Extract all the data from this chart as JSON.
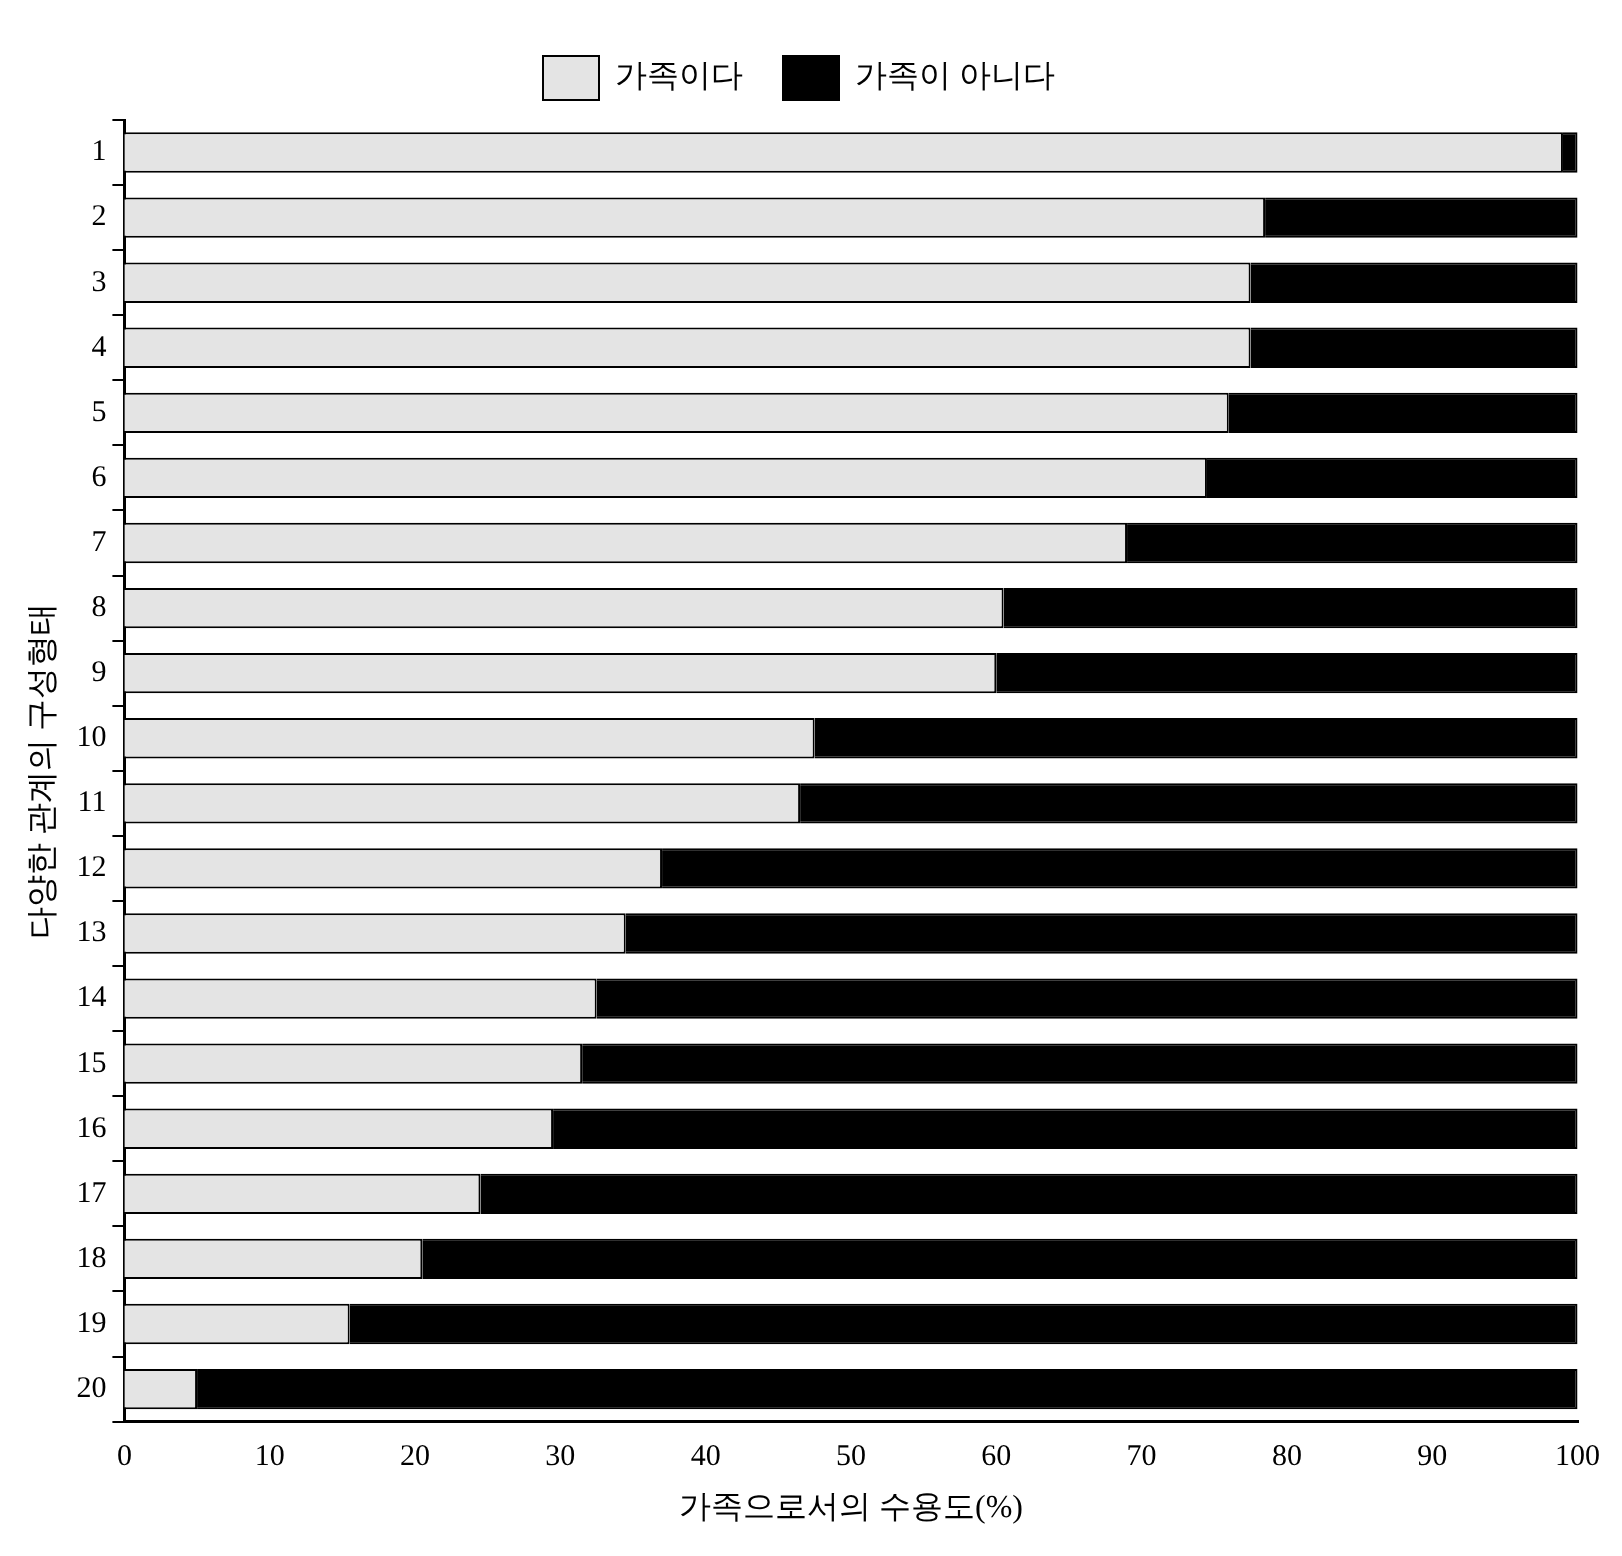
{
  "chart_data": {
    "type": "bar",
    "orientation": "horizontal",
    "stacked": true,
    "xlabel": "가족으로서의 수용도(%)",
    "ylabel": "다양한 관계의 구성형태",
    "categories": [
      "1",
      "2",
      "3",
      "4",
      "5",
      "6",
      "7",
      "8",
      "9",
      "10",
      "11",
      "12",
      "13",
      "14",
      "15",
      "16",
      "17",
      "18",
      "19",
      "20"
    ],
    "series": [
      {
        "name": "가족이다",
        "color": "#e4e4e4",
        "values": [
          99,
          78.5,
          77.5,
          77.5,
          76,
          74.5,
          69,
          60.5,
          60,
          47.5,
          46.5,
          37,
          34.5,
          32.5,
          31.5,
          29.5,
          24.5,
          20.5,
          15.5,
          5
        ]
      },
      {
        "name": "가족이 아니다",
        "color": "#000000",
        "values": [
          1,
          21.5,
          22.5,
          22.5,
          24,
          25.5,
          31,
          39.5,
          40,
          52.5,
          53.5,
          63,
          65.5,
          67.5,
          68.5,
          70.5,
          75.5,
          79.5,
          84.5,
          95
        ]
      }
    ],
    "xlim": [
      0,
      100
    ],
    "xticks": [
      0,
      10,
      20,
      30,
      40,
      50,
      60,
      70,
      80,
      90,
      100
    ],
    "grid": false,
    "legend": "top"
  }
}
